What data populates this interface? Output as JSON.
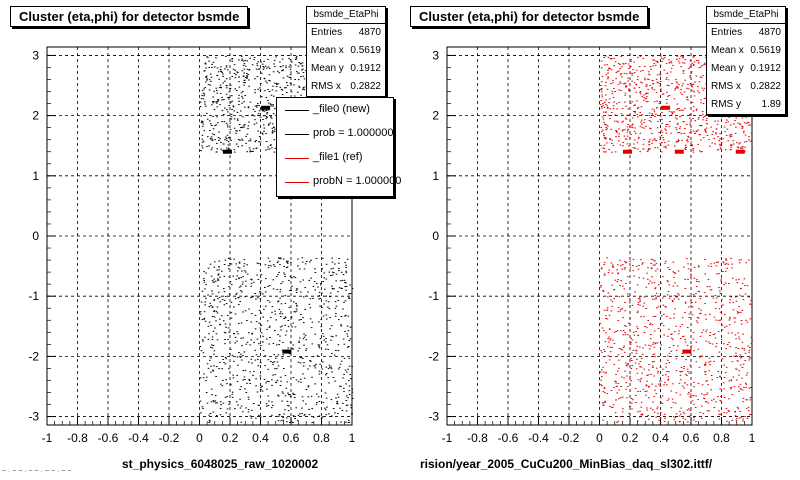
{
  "colors": {
    "file0": "#000000",
    "file1": "#e00000",
    "grid": "#000000"
  },
  "chart_data": [
    {
      "type": "scatter",
      "title": "Cluster (eta,phi) for detector bsmde",
      "xlim": [
        -1,
        1
      ],
      "ylim": [
        -3.14,
        3.14
      ],
      "xticks": [
        "-1",
        "-0.8",
        "-0.6",
        "-0.4",
        "-0.2",
        "0",
        "0.2",
        "0.4",
        "0.6",
        "0.8",
        "1"
      ],
      "yticks": [
        "3",
        "2",
        "1",
        "0",
        "-1",
        "-2",
        "-3"
      ],
      "grid": true,
      "xcaption": "st_physics_6048025_raw_1020002",
      "stats": {
        "name": "bsmde_EtaPhi",
        "rows": [
          [
            "Entries",
            "4870"
          ],
          [
            "Mean x",
            "0.5619"
          ],
          [
            "Mean y",
            "0.1912"
          ],
          [
            "RMS x",
            "0.2822"
          ]
        ]
      },
      "legend": {
        "position": "top-right",
        "entries": [
          {
            "label": "_file0 (new)",
            "color": "#000000"
          },
          {
            "label": "prob = 1.000000",
            "color": "#000000"
          },
          {
            "label": "_file1 (ref)",
            "color": "#e00000"
          },
          {
            "label": "probN = 1.000000",
            "color": "#e00000"
          }
        ]
      },
      "series": [
        {
          "color": "#000000",
          "clusters": [
            {
              "x": [
                0,
                1
              ],
              "y": [
                1.4,
                3.0
              ]
            },
            {
              "x": [
                0,
                1
              ],
              "y": [
                -3.1,
                -0.35
              ]
            }
          ],
          "hotspots": [
            {
              "x": 0.18,
              "y": 1.4
            },
            {
              "x": 0.43,
              "y": 2.13
            },
            {
              "x": 0.57,
              "y": -1.92
            }
          ]
        }
      ]
    },
    {
      "type": "scatter",
      "title": "Cluster (eta,phi) for detector bsmde",
      "xlim": [
        -1,
        1
      ],
      "ylim": [
        -3.14,
        3.14
      ],
      "xticks": [
        "-1",
        "-0.8",
        "-0.6",
        "-0.4",
        "-0.2",
        "0",
        "0.2",
        "0.4",
        "0.6",
        "0.8",
        "1"
      ],
      "yticks": [
        "3",
        "2",
        "1",
        "0",
        "-1",
        "-2",
        "-3"
      ],
      "grid": true,
      "xcaption": "rision/year_2005_CuCu200_MinBias_daq_sl302.ittf/",
      "stats": {
        "name": "bsmde_EtaPhi",
        "rows": [
          [
            "Entries",
            "4870"
          ],
          [
            "Mean x",
            "0.5619"
          ],
          [
            "Mean y",
            "0.1912"
          ],
          [
            "RMS x",
            "0.2822"
          ],
          [
            "RMS y",
            "1.89"
          ]
        ]
      },
      "series": [
        {
          "color": "#e00000",
          "clusters": [
            {
              "x": [
                0,
                1
              ],
              "y": [
                1.4,
                3.0
              ]
            },
            {
              "x": [
                0,
                1
              ],
              "y": [
                -3.1,
                -0.35
              ]
            }
          ],
          "hotspots": [
            {
              "x": 0.18,
              "y": 1.4
            },
            {
              "x": 0.43,
              "y": 2.13
            },
            {
              "x": 0.52,
              "y": 1.4
            },
            {
              "x": 0.92,
              "y": 1.4
            },
            {
              "x": 0.57,
              "y": -1.92
            }
          ]
        }
      ]
    }
  ],
  "footer_text": "~ · ~ ~ · ~ ~ · ~ ~ · ~ ~"
}
